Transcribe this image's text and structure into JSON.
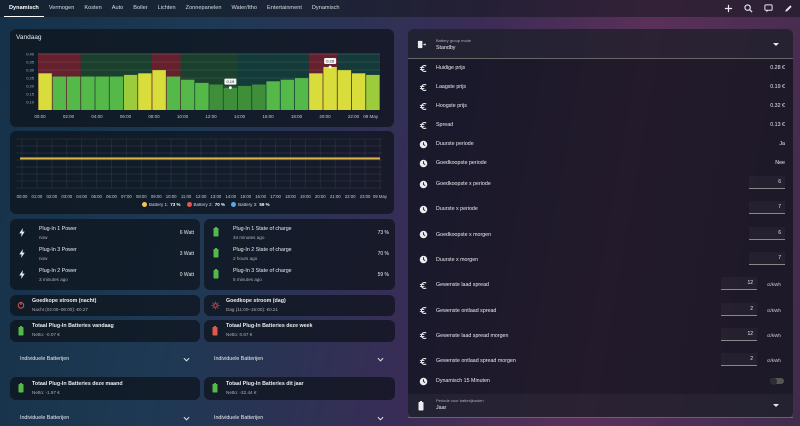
{
  "tabs": [
    "Dynamisch",
    "Vermogen",
    "Kosten",
    "Auto",
    "Boiler",
    "Lichten",
    "Zonnepanelen",
    "Water/Itho",
    "Entertainment",
    "Dynamisch"
  ],
  "colors": {
    "green_dark": "#3f8f3a",
    "green": "#54b948",
    "yellow": "#d8dd3c",
    "lime": "#9ccc3c",
    "red_band": "#7a2330",
    "green_band": "#1e4a2e",
    "teal_band": "#14433e"
  },
  "price_chart": {
    "title": "Vandaag",
    "y_ticks": [
      "0.40",
      "0.35",
      "0.30",
      "0.25",
      "0.20",
      "0.15",
      "0.10"
    ],
    "x_ticks": [
      "00:00",
      "02:00",
      "04:00",
      "06:00",
      "08:00",
      "10:00",
      "12:00",
      "14:00",
      "16:00",
      "18:00",
      "20:00",
      "22:00",
      "09 May"
    ],
    "markers": {
      "low": "0.19",
      "high": "0.32",
      "now": "0.28"
    }
  },
  "chart_data": [
    {
      "type": "bar",
      "title": "Vandaag",
      "categories": [
        "00",
        "01",
        "02",
        "03",
        "04",
        "05",
        "06",
        "07",
        "08",
        "09",
        "10",
        "11",
        "12",
        "13",
        "14",
        "15",
        "16",
        "17",
        "18",
        "19",
        "20",
        "21",
        "22",
        "23"
      ],
      "values": [
        0.28,
        0.26,
        0.26,
        0.26,
        0.26,
        0.26,
        0.27,
        0.28,
        0.3,
        0.26,
        0.24,
        0.22,
        0.21,
        0.19,
        0.2,
        0.21,
        0.23,
        0.24,
        0.25,
        0.28,
        0.32,
        0.3,
        0.28,
        0.27
      ],
      "ylim": [
        0.05,
        0.42
      ]
    },
    {
      "type": "line",
      "series": [
        {
          "name": "Battery 1",
          "value": "73 %"
        },
        {
          "name": "Battery 2",
          "value": "70 %"
        },
        {
          "name": "Battery 3",
          "value": "59 %"
        }
      ],
      "x": [
        "00:00",
        "01:00",
        "02:00",
        "03:00",
        "04:00",
        "05:00",
        "06:00",
        "07:00",
        "08:00",
        "09:00",
        "10:00",
        "11:00",
        "12:00",
        "13:00",
        "14:00",
        "15:00",
        "16:00",
        "17:00",
        "18:00",
        "19:00",
        "20:00",
        "21:00",
        "22:00",
        "23:00",
        "09 May"
      ]
    }
  ],
  "battery_chart": {
    "x_ticks": [
      "00:00",
      "01:00",
      "02:00",
      "03:00",
      "04:00",
      "05:00",
      "06:00",
      "07:00",
      "08:00",
      "09:00",
      "10:00",
      "11:00",
      "12:00",
      "13:00",
      "14:00",
      "15:00",
      "16:00",
      "17:00",
      "18:00",
      "19:00",
      "20:00",
      "21:00",
      "22:00",
      "23:00",
      "09 May"
    ],
    "legend": [
      {
        "name": "Battery 1:",
        "value": "73 %",
        "color": "#f2c94c"
      },
      {
        "name": "Battery 2:",
        "value": "70 %",
        "color": "#e0584f"
      },
      {
        "name": "Battery 3:",
        "value": "59 %",
        "color": "#5aa9e6"
      }
    ]
  },
  "plugs_power": [
    {
      "name": "Plug-In 1 Power",
      "time": "now",
      "value": "6 Watt"
    },
    {
      "name": "Plug-In 3 Power",
      "time": "now",
      "value": "3 Watt"
    },
    {
      "name": "Plug-In 2 Power",
      "time": "3 minutes ago",
      "value": "0 Watt"
    }
  ],
  "plugs_soc": [
    {
      "name": "Plug-In 1 State of charge",
      "time": "34 minutes ago",
      "value": "73 %"
    },
    {
      "name": "Plug-In 2 State of charge",
      "time": "2 hours ago",
      "value": "70 %"
    },
    {
      "name": "Plug-In 3 State of charge",
      "time": "5 minutes ago",
      "value": "59 %"
    }
  ],
  "cheap_night": {
    "title": "Goedkope stroom (nacht)",
    "sub": "Nacht (02:00–06:00): €0.27"
  },
  "cheap_day": {
    "title": "Goedkope stroom (dag)",
    "sub": "Dag (11:00–15:00): €0.21"
  },
  "totals": [
    {
      "title": "Totaal Plug-In Batteries vandaag",
      "sub": "Netto: -0.07 €"
    },
    {
      "title": "Totaal Plug-In Batteries deze week",
      "sub": "Netto: 0.67 €"
    },
    {
      "title": "Totaal Plug-In Batteries deze maand",
      "sub": "Netto: -1.97 €"
    },
    {
      "title": "Totaal Plug-In Batteries dit jaar",
      "sub": "Netto: -32.44 €"
    }
  ],
  "individual_label": "Individuele Batterijen",
  "right": {
    "group_mode_label": "Battery group mode",
    "group_mode_value": "Standby",
    "rows": [
      {
        "label": "Huidige prijs",
        "value": "0.28 €"
      },
      {
        "label": "Laagste prijs",
        "value": "0.19 €"
      },
      {
        "label": "Hoogste prijs",
        "value": "0.32 €"
      },
      {
        "label": "Spread",
        "value": "0.13 €"
      },
      {
        "label": "Duurste periode",
        "value": "Ja"
      },
      {
        "label": "Goedkoopste periode",
        "value": "Nee"
      }
    ],
    "num_rows": [
      {
        "label": "Goedkoopste x periode",
        "value": "6",
        "unit": ""
      },
      {
        "label": "Duurste x periode",
        "value": "7",
        "unit": ""
      },
      {
        "label": "Goedkoopste x morgen",
        "value": "6",
        "unit": ""
      },
      {
        "label": "Duurste x morgen",
        "value": "7",
        "unit": ""
      },
      {
        "label": "Gewenste laad spread",
        "value": "12",
        "unit": "ct/kWh"
      },
      {
        "label": "Gewenste ontlaad spread",
        "value": "2",
        "unit": "ct/kWh"
      },
      {
        "label": "Gewenste laad spread morgen",
        "value": "12",
        "unit": "ct/kWh"
      },
      {
        "label": "Gewenste ontlaad spread morgen",
        "value": "2",
        "unit": "ct/kWh"
      }
    ],
    "dyn_label": "Dynamisch 15 Minuten",
    "period_label": "Periode voor batterijkosten",
    "period_value": "Jaar"
  }
}
